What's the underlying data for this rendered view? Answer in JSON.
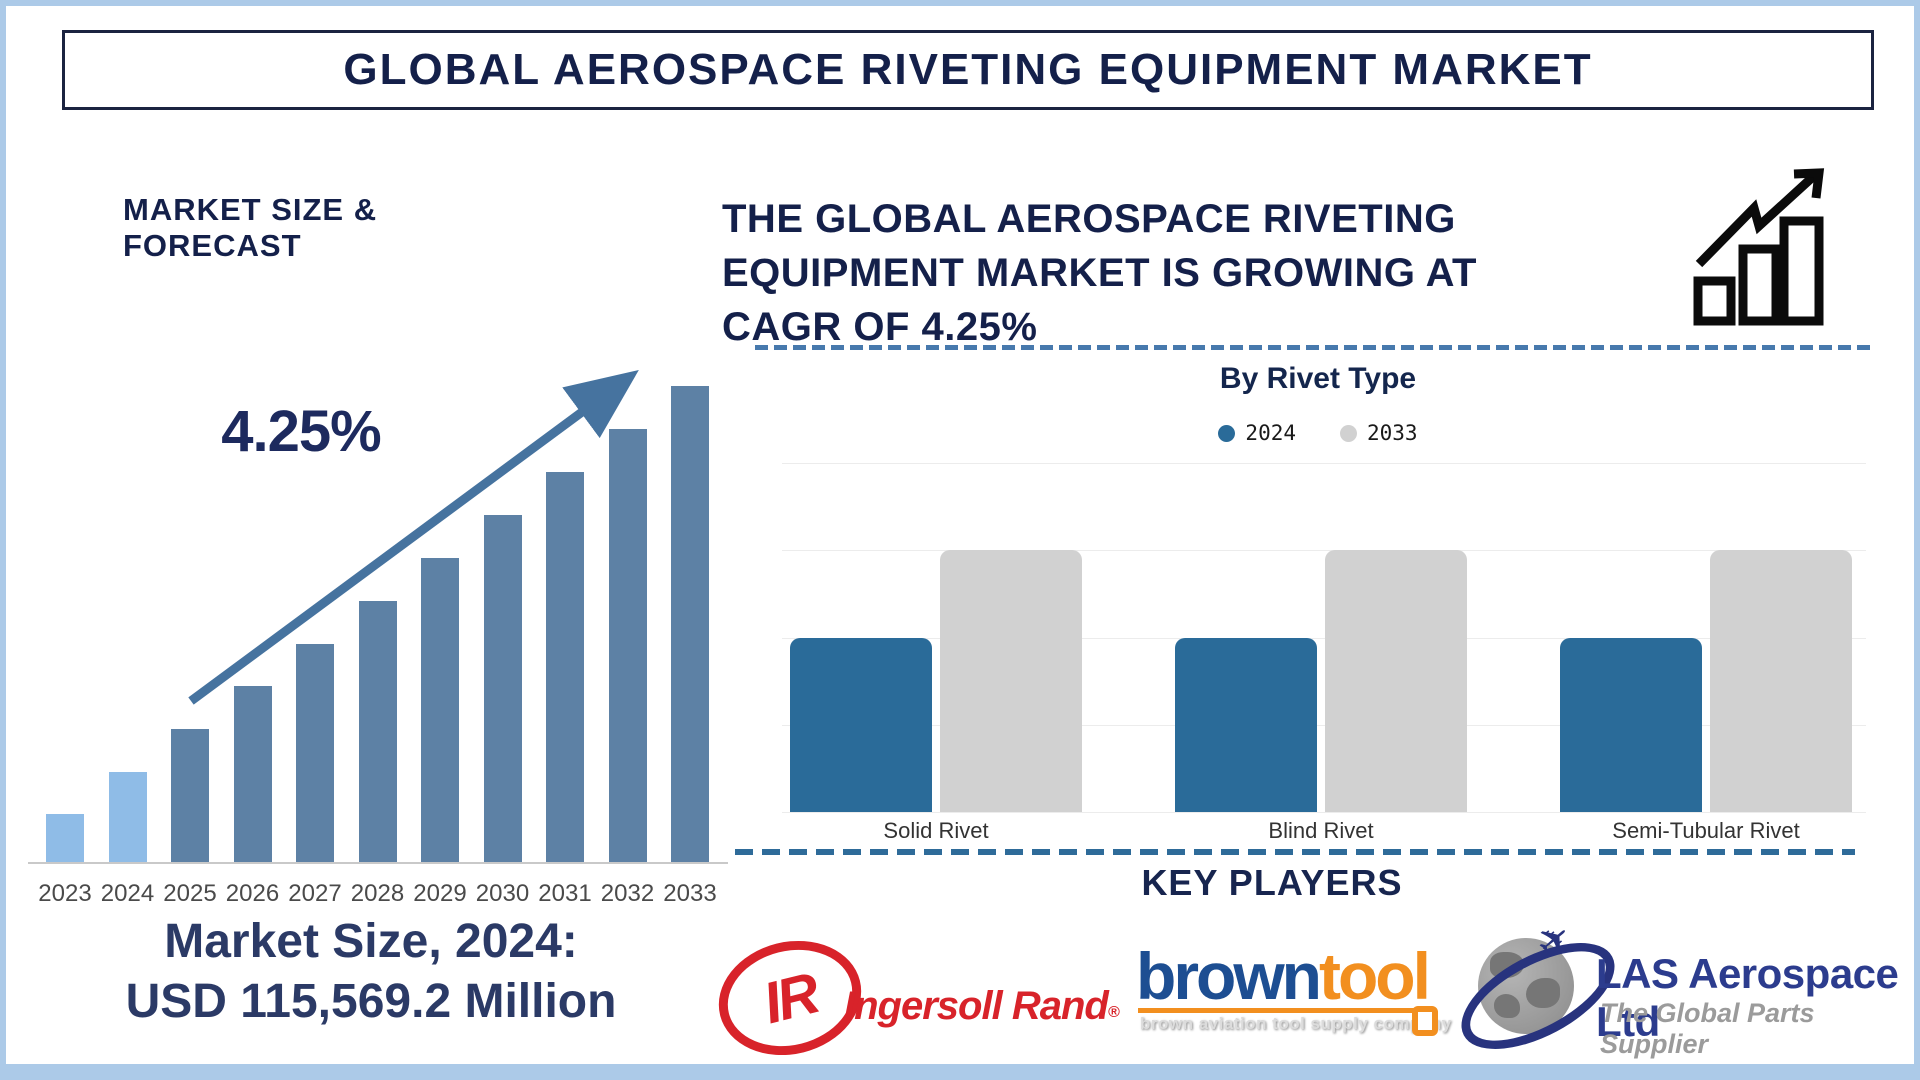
{
  "page": {
    "title": "GLOBAL AEROSPACE RIVETING EQUIPMENT MARKET"
  },
  "left": {
    "section_title": "MARKET SIZE & FORECAST",
    "cagr_label": "4.25%",
    "market_size_line1": "Market Size, 2024:",
    "market_size_line2": "USD 115,569.2 Million"
  },
  "right": {
    "headline_lines": [
      "THE GLOBAL AEROSPACE RIVETING",
      "EQUIPMENT MARKET IS GROWING AT",
      "CAGR OF 4.25%"
    ],
    "by_rivet_title": "By Rivet Type",
    "legend": [
      {
        "label": "2024",
        "color": "#2a6b99"
      },
      {
        "label": "2033",
        "color": "#d1d1d1"
      }
    ],
    "key_players_title": "KEY PLAYERS",
    "players": {
      "ingersoll": {
        "abbr": "IR",
        "name": "Ingersoll Rand",
        "registered_mark": "®",
        "brand_color": "#d8232a"
      },
      "browntool": {
        "part1": "brown",
        "part2": "tool",
        "tagline": "brown aviation tool supply company",
        "blue": "#1d4e92",
        "orange": "#f28f1f"
      },
      "las": {
        "name": "LAS Aerospace Ltd",
        "tagline": "The Global Parts Supplier",
        "brand_color": "#2c3c8e"
      }
    }
  },
  "chart_data": [
    {
      "type": "bar",
      "title": "MARKET SIZE & FORECAST",
      "categories": [
        "2023",
        "2024",
        "2025",
        "2026",
        "2027",
        "2028",
        "2029",
        "2030",
        "2031",
        "2032",
        "2033"
      ],
      "values": [
        48,
        90,
        133,
        176,
        218,
        261,
        304,
        347,
        390,
        433,
        476
      ],
      "units": "relative bar height (schematic; no y-axis scale shown)",
      "annotations": [
        "4.25% CAGR trend arrow"
      ],
      "highlight_count": 2,
      "highlight_color": "#8fbce7",
      "base_color": "#5d81a5",
      "xlabel": "",
      "ylabel": "",
      "grid": false,
      "legend_position": "none"
    },
    {
      "type": "bar",
      "title": "By Rivet Type",
      "categories": [
        "Solid Rivet",
        "Blind Rivet",
        "Semi-Tubular Rivet"
      ],
      "series": [
        {
          "name": "2024",
          "values": [
            2,
            2,
            2
          ],
          "color": "#2a6b99"
        },
        {
          "name": "2033",
          "values": [
            3,
            3,
            3
          ],
          "color": "#d1d1d1"
        }
      ],
      "ylim": [
        0,
        4
      ],
      "units": "relative (no axis labels shown)",
      "grid": true,
      "legend_position": "top",
      "xlabel": "",
      "ylabel": ""
    }
  ]
}
